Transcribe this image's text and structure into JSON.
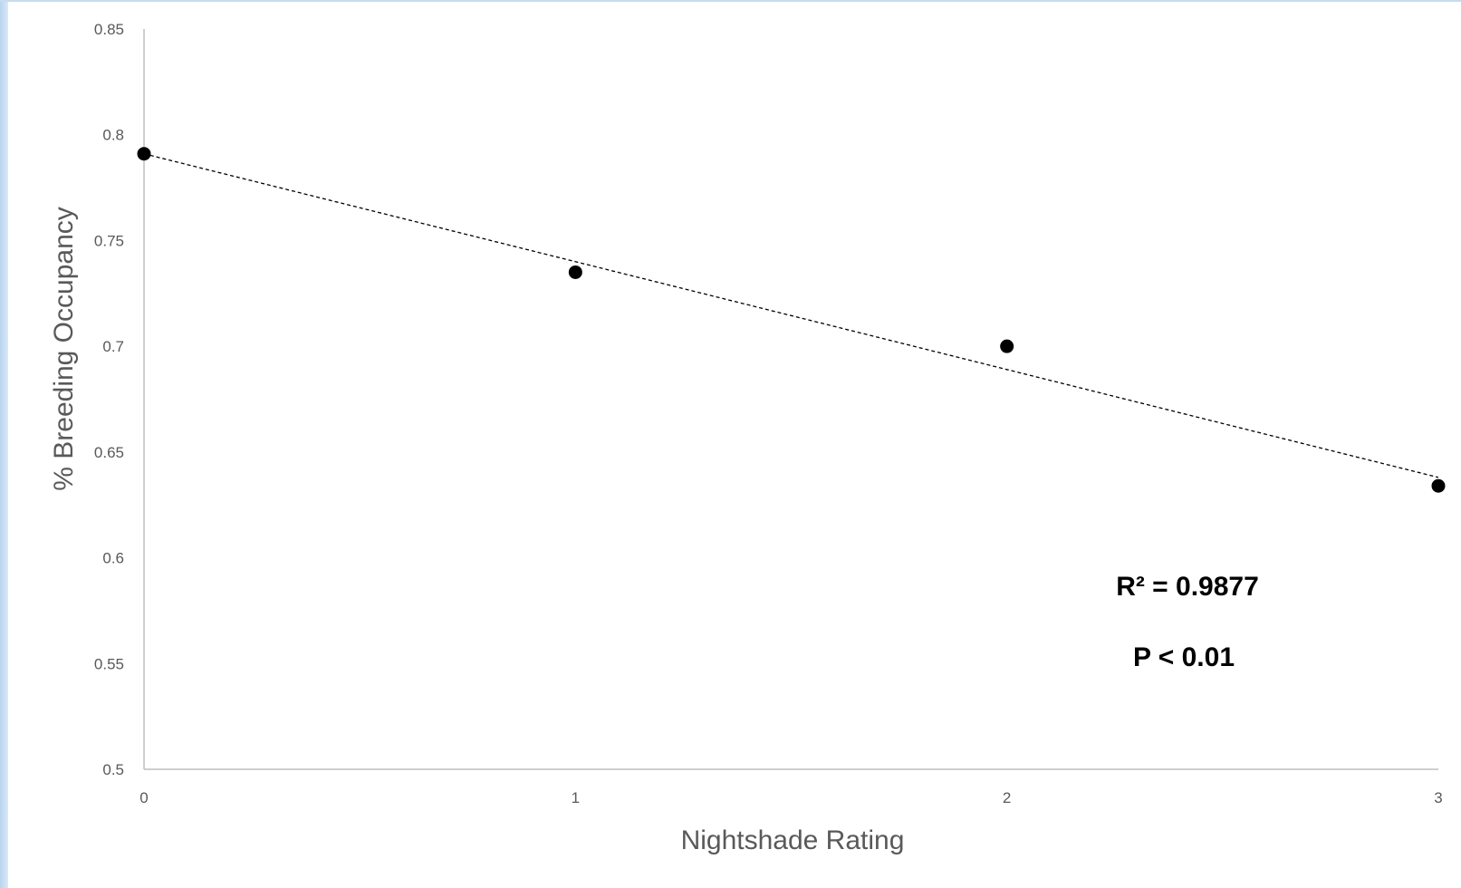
{
  "chart_data": {
    "type": "scatter",
    "title": "",
    "xlabel": "Nightshade Rating",
    "ylabel": "% Breeding Occupancy",
    "xlim": [
      0,
      3
    ],
    "ylim": [
      0.5,
      0.85
    ],
    "x_ticks": [
      "0",
      "1",
      "2",
      "3"
    ],
    "y_ticks": [
      "0.85",
      "0.8",
      "0.75",
      "0.7",
      "0.65",
      "0.6",
      "0.55",
      "0.5"
    ],
    "grid": false,
    "legend": "none",
    "series": [
      {
        "x": [
          0,
          1,
          2,
          3
        ],
        "y": [
          0.791,
          0.735,
          0.7,
          0.634
        ],
        "color": "#000000"
      }
    ],
    "trendline": {
      "type": "linear",
      "style": "dashed",
      "color": "#000000",
      "x": [
        0,
        3
      ],
      "y": [
        0.791,
        0.638
      ]
    },
    "annotations": [
      "R² = 0.9877",
      "P < 0.01"
    ],
    "axis_color": "#bfbfbf",
    "label_color": "#595959"
  }
}
